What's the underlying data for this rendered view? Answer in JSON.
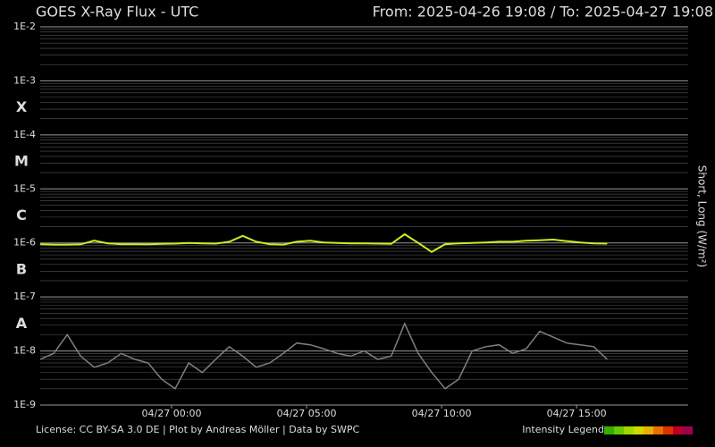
{
  "chart_data": {
    "type": "line",
    "title": "GOES X-Ray Flux - UTC",
    "subtitle": "From: 2025-04-26 19:08  /  To: 2025-04-27 19:08",
    "y_label": "Short, Long (W/m²)",
    "footer": "License: CC BY-SA 3.0 DE | Plot by Andreas Möller | Data by SWPC",
    "legend_title": "Intensity Legend",
    "legend_colors": [
      "#33b000",
      "#66c800",
      "#a0d800",
      "#d0d800",
      "#e8b000",
      "#e87000",
      "#e03000",
      "#c00020",
      "#a00050"
    ],
    "log_scale": true,
    "grid": true,
    "ylim": [
      1e-09,
      0.01
    ],
    "yticks": [
      {
        "value": 1e-09,
        "label": "1E-9"
      },
      {
        "value": 1e-08,
        "label": "1E-8"
      },
      {
        "value": 1e-07,
        "label": "1E-7"
      },
      {
        "value": 1e-06,
        "label": "1E-6"
      },
      {
        "value": 1e-05,
        "label": "1E-5"
      },
      {
        "value": 0.0001,
        "label": "1E-4"
      },
      {
        "value": 0.001,
        "label": "1E-3"
      },
      {
        "value": 0.01,
        "label": "1E-2"
      }
    ],
    "class_bands": [
      {
        "label": "X",
        "from": 0.0001,
        "color": "#c01010"
      },
      {
        "label": "M",
        "from": 1e-05,
        "color": "#e06010"
      },
      {
        "label": "C",
        "from": 1e-06,
        "color": "#d8d820"
      },
      {
        "label": "B",
        "from": 1e-07,
        "color": "#70c020"
      },
      {
        "label": "A",
        "from": 1e-08,
        "color": "#20a020"
      }
    ],
    "xlim": [
      "04/26 19:08",
      "04/27 19:08"
    ],
    "xticks": [
      "04/27 00:00",
      "04/27 05:00",
      "04/27 10:00",
      "04/27 15:00"
    ],
    "x": [
      "04/26 19:08",
      "04/26 19:38",
      "04/26 20:08",
      "04/26 20:38",
      "04/26 21:08",
      "04/26 21:38",
      "04/26 22:08",
      "04/26 22:38",
      "04/26 23:08",
      "04/26 23:38",
      "04/27 00:08",
      "04/27 00:38",
      "04/27 01:08",
      "04/27 01:38",
      "04/27 02:08",
      "04/27 02:38",
      "04/27 03:08",
      "04/27 03:38",
      "04/27 04:08",
      "04/27 04:38",
      "04/27 05:08",
      "04/27 05:38",
      "04/27 06:08",
      "04/27 06:38",
      "04/27 07:08",
      "04/27 07:38",
      "04/27 08:08",
      "04/27 08:38",
      "04/27 09:08",
      "04/27 09:38",
      "04/27 10:08",
      "04/27 10:38",
      "04/27 11:08",
      "04/27 11:38",
      "04/27 12:08",
      "04/27 12:38",
      "04/27 13:08",
      "04/27 13:38",
      "04/27 14:08",
      "04/27 14:38",
      "04/27 15:08",
      "04/27 15:38",
      "04/27 16:08"
    ],
    "series": [
      {
        "name": "Short",
        "color": "#808080",
        "values": [
          7e-09,
          9e-09,
          2e-08,
          8e-09,
          5e-09,
          6e-09,
          9e-09,
          7e-09,
          6e-09,
          3e-09,
          2e-09,
          6e-09,
          4e-09,
          7e-09,
          1.2e-08,
          8e-09,
          5e-09,
          6e-09,
          9e-09,
          1.4e-08,
          1.3e-08,
          1.1e-08,
          9e-09,
          8e-09,
          1e-08,
          7e-09,
          8e-09,
          3.2e-08,
          9e-09,
          4e-09,
          2e-09,
          3e-09,
          1e-08,
          1.2e-08,
          1.3e-08,
          9e-09,
          1.1e-08,
          2.3e-08,
          1.8e-08,
          1.4e-08,
          1.3e-08,
          1.2e-08,
          7e-09
        ]
      },
      {
        "name": "Long",
        "color": "#c8f020",
        "values": [
          9.5e-07,
          9.3e-07,
          9.3e-07,
          9.4e-07,
          1.1e-06,
          9.8e-07,
          9.5e-07,
          9.5e-07,
          9.4e-07,
          9.6e-07,
          9.7e-07,
          1e-06,
          9.8e-07,
          9.7e-07,
          1.05e-06,
          1.35e-06,
          1.05e-06,
          9.5e-07,
          9.3e-07,
          1.05e-06,
          1.1e-06,
          1.02e-06,
          1e-06,
          9.8e-07,
          9.8e-07,
          9.7e-07,
          9.6e-07,
          1.45e-06,
          1e-06,
          6.8e-07,
          9.5e-07,
          9.8e-07,
          1e-06,
          1.02e-06,
          1.05e-06,
          1.05e-06,
          1.1e-06,
          1.12e-06,
          1.15e-06,
          1.08e-06,
          1.02e-06,
          9.8e-07,
          9.7e-07
        ]
      }
    ]
  }
}
